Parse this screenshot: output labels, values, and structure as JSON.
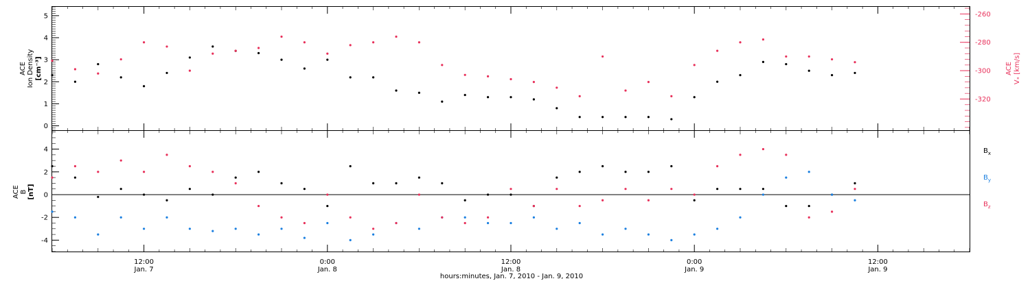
{
  "chart_data": [
    {
      "type": "scatter",
      "panel": "top",
      "ylabel_left": [
        "ACE",
        "Ion Density",
        "[cm⁻³]"
      ],
      "ylabel_right": [
        "ACE",
        "Vₓ [km/s]"
      ],
      "ylim_left": [
        -0.2,
        5.4
      ],
      "ylim_right": [
        -342,
        -255
      ],
      "yticks_left": [
        0,
        1,
        2,
        3,
        4,
        5
      ],
      "yticks_right": [
        -320,
        -300,
        -280,
        -260
      ],
      "colors": {
        "density": "#000000",
        "vx": "#e8305a"
      },
      "series": [
        {
          "key": "density",
          "axis": "left",
          "x": [
            0,
            1.5,
            3,
            4.5,
            6,
            7.5,
            9,
            10.5,
            12,
            13.5,
            15,
            16.5,
            18,
            19.5,
            21,
            22.5,
            24,
            25.5,
            27,
            28.5,
            30,
            31.5,
            33,
            34.5,
            36,
            37.5,
            39,
            40.5,
            42,
            43.5,
            45,
            46.5,
            48,
            49.5,
            51,
            52.5
          ],
          "y": [
            2.3,
            2.0,
            2.8,
            2.2,
            1.8,
            2.4,
            3.1,
            3.6,
            3.4,
            3.3,
            3.0,
            2.6,
            3.0,
            2.2,
            2.2,
            1.6,
            1.5,
            1.1,
            1.4,
            1.3,
            1.3,
            1.2,
            0.8,
            0.4,
            0.4,
            0.4,
            0.4,
            0.3,
            1.3,
            2.0,
            2.3,
            2.9,
            2.8,
            2.5,
            2.3,
            2.4
          ]
        },
        {
          "key": "vx",
          "axis": "right",
          "x": [
            0,
            1.5,
            3,
            4.5,
            6,
            7.5,
            9,
            10.5,
            12,
            13.5,
            15,
            16.5,
            18,
            19.5,
            21,
            22.5,
            24,
            25.5,
            27,
            28.5,
            30,
            31.5,
            33,
            34.5,
            36,
            37.5,
            39,
            40.5,
            42,
            43.5,
            45,
            46.5,
            48,
            49.5,
            51,
            52.5
          ],
          "y": [
            -293,
            -299,
            -302,
            -292,
            -280,
            -283,
            -300,
            -288,
            -286,
            -284,
            -276,
            -280,
            -288,
            -282,
            -280,
            -276,
            -280,
            -296,
            -303,
            -304,
            -306,
            -308,
            -312,
            -318,
            -290,
            -314,
            -308,
            -318,
            -296,
            -286,
            -280,
            -278,
            -290,
            -290,
            -292,
            -294
          ]
        }
      ]
    },
    {
      "type": "scatter",
      "panel": "bottom",
      "ylabel_left": [
        "ACE",
        "B",
        "[nT]"
      ],
      "ylim": [
        -5,
        5.6
      ],
      "yticks": [
        -4,
        -2,
        0,
        2,
        4
      ],
      "zero_line": true,
      "legend_location": "right",
      "colors": {
        "bx": "#000000",
        "by": "#1a7fe0",
        "bz": "#e8305a"
      },
      "series": [
        {
          "key": "bx",
          "legend_main": "B",
          "legend_sub": "x",
          "x": [
            0,
            1.5,
            3,
            4.5,
            6,
            7.5,
            9,
            10.5,
            12,
            13.5,
            15,
            16.5,
            18,
            19.5,
            21,
            22.5,
            24,
            25.5,
            27,
            28.5,
            30,
            31.5,
            33,
            34.5,
            36,
            37.5,
            39,
            40.5,
            42,
            43.5,
            45,
            46.5,
            48,
            49.5,
            51,
            52.5
          ],
          "y": [
            2.5,
            1.5,
            -0.2,
            0.5,
            0,
            -0.5,
            0.5,
            0,
            1.5,
            2.0,
            1.0,
            0.5,
            -1.0,
            2.5,
            1.0,
            1.0,
            1.5,
            1.0,
            -0.5,
            0,
            0,
            -1.0,
            1.5,
            2.0,
            2.5,
            2.0,
            2.0,
            2.5,
            -0.5,
            0.5,
            0.5,
            0.5,
            -1.0,
            -1.0,
            0,
            1.0
          ]
        },
        {
          "key": "by",
          "legend_main": "B",
          "legend_sub": "y",
          "x": [
            0,
            1.5,
            3,
            4.5,
            6,
            7.5,
            9,
            10.5,
            12,
            13.5,
            15,
            16.5,
            18,
            19.5,
            21,
            22.5,
            24,
            25.5,
            27,
            28.5,
            30,
            31.5,
            33,
            34.5,
            36,
            37.5,
            39,
            40.5,
            42,
            43.5,
            45,
            46.5,
            48,
            49.5,
            51,
            52.5
          ],
          "y": [
            -1.5,
            -2.0,
            -3.5,
            -2.0,
            -3.0,
            -2.0,
            -3.0,
            -3.2,
            -3.0,
            -3.5,
            -3.0,
            -3.8,
            -2.5,
            -4.0,
            -3.5,
            -2.5,
            -3.0,
            -2.0,
            -2.0,
            -2.5,
            -2.5,
            -2.0,
            -3.0,
            -2.5,
            -3.5,
            -3.0,
            -3.5,
            -4.0,
            -3.5,
            -3.0,
            -2.0,
            0,
            1.5,
            2.0,
            0,
            -0.5
          ]
        },
        {
          "key": "bz",
          "legend_main": "B",
          "legend_sub": "z",
          "x": [
            0,
            1.5,
            3,
            4.5,
            6,
            7.5,
            9,
            10.5,
            12,
            13.5,
            15,
            16.5,
            18,
            19.5,
            21,
            22.5,
            24,
            25.5,
            27,
            28.5,
            30,
            31.5,
            33,
            34.5,
            36,
            37.5,
            39,
            40.5,
            42,
            43.5,
            45,
            46.5,
            48,
            49.5,
            51,
            52.5
          ],
          "y": [
            1.5,
            2.5,
            2.0,
            3.0,
            2.0,
            3.5,
            2.5,
            2.0,
            1.0,
            -1.0,
            -2.0,
            -2.5,
            0,
            -2.0,
            -3.0,
            -2.5,
            0,
            -2.0,
            -2.5,
            -2.0,
            0.5,
            -1.0,
            0.5,
            -1.0,
            -0.5,
            0.5,
            -0.5,
            0.5,
            0,
            2.5,
            3.5,
            4.0,
            3.5,
            -2.0,
            -1.5,
            0.5
          ]
        }
      ]
    }
  ],
  "x_axis": {
    "range": [
      0,
      60
    ],
    "major_ticks": [
      {
        "x": 6,
        "time": "12:00",
        "date": "Jan. 7"
      },
      {
        "x": 18,
        "time": "0:00",
        "date": "Jan. 8"
      },
      {
        "x": 30,
        "time": "12:00",
        "date": "Jan. 8"
      },
      {
        "x": 42,
        "time": "0:00",
        "date": "Jan. 9"
      },
      {
        "x": 54,
        "time": "12:00",
        "date": "Jan. 9"
      }
    ],
    "title": "hours:minutes, Jan.  7, 2010 - Jan.  9, 2010"
  }
}
